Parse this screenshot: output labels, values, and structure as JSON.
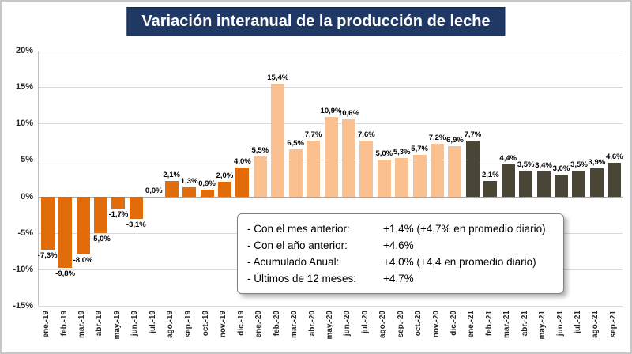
{
  "title": "Variación interanual de la producción de leche",
  "annotation": {
    "lines": [
      {
        "label": "- Con el mes anterior:",
        "value": "+1,4% (+4,7% en promedio diario)"
      },
      {
        "label": "- Con el año anterior:",
        "value": "+4,6%"
      },
      {
        "label": "- Acumulado Anual:",
        "value": "+4,0% (+4,4 en promedio diario)"
      },
      {
        "label": "- Últimos de 12 meses:",
        "value": "+4,7%"
      }
    ]
  },
  "chart_data": {
    "type": "bar",
    "title": "Variación interanual de la producción de leche",
    "xlabel": "",
    "ylabel": "",
    "ylim": [
      -15,
      20
    ],
    "grid": true,
    "legend": "none",
    "yticks": [
      20,
      15,
      10,
      5,
      0,
      -5,
      -10,
      -15
    ],
    "ytick_labels": [
      "20%",
      "15%",
      "10%",
      "5%",
      "0%",
      "-5%",
      "-10%",
      "-15%"
    ],
    "categories": [
      "ene.-19",
      "feb.-19",
      "mar.-19",
      "abr.-19",
      "may.-19",
      "jun.-19",
      "jul.-19",
      "ago.-19",
      "sep.-19",
      "oct.-19",
      "nov.-19",
      "dic.-19",
      "ene.-20",
      "feb.-20",
      "mar.-20",
      "abr.-20",
      "may.-20",
      "jun.-20",
      "jul.-20",
      "ago.-20",
      "sep.-20",
      "oct.-20",
      "nov.-20",
      "dic.-20",
      "ene.-21",
      "feb.-21",
      "mar.-21",
      "abr.-21",
      "may.-21",
      "jun.-21",
      "jul.-21",
      "ago.-21",
      "sep.-21"
    ],
    "values": [
      -7.3,
      -9.8,
      -8.0,
      -5.0,
      -1.7,
      -3.1,
      0.0,
      2.1,
      1.3,
      0.9,
      2.0,
      4.0,
      5.5,
      15.4,
      6.5,
      7.7,
      10.9,
      10.6,
      7.6,
      5.0,
      5.3,
      5.7,
      7.2,
      6.9,
      7.7,
      2.1,
      4.4,
      3.5,
      3.4,
      3.0,
      3.5,
      3.9,
      4.6
    ],
    "labels": [
      "-7,3%",
      "-9,8%",
      "-8,0%",
      "-5,0%",
      "-1,7%",
      "-3,1%",
      "0,0%",
      "2,1%",
      "1,3%",
      "0,9%",
      "2,0%",
      "4,0%",
      "5,5%",
      "15,4%",
      "6,5%",
      "7,7%",
      "10,9%",
      "10,6%",
      "7,6%",
      "5,0%",
      "5,3%",
      "5,7%",
      "7,2%",
      "6,9%",
      "7,7%",
      "2,1%",
      "4,4%",
      "3,5%",
      "3,4%",
      "3,0%",
      "3,5%",
      "3,9%",
      "4,6%"
    ],
    "colors": {
      "19": "#E36C0A",
      "20": "#FAC090",
      "21": "#4A4637"
    }
  }
}
